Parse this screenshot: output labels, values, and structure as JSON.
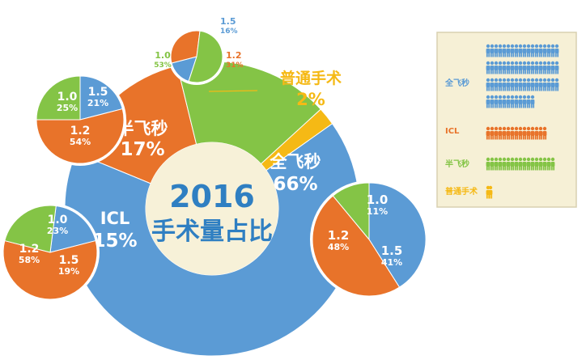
{
  "colors": {
    "blue": "#5B9BD5",
    "orange": "#E8732A",
    "green": "#84C446",
    "yellow": "#F5B915",
    "center": "#F7F1D8",
    "center_text": "#2F7FC2",
    "panel_bg": "#F6F0D6",
    "panel_border": "#D8D0B0"
  },
  "chart_data": [
    {
      "type": "pie",
      "title": "2016",
      "subtitle": "手术量占比",
      "donut": true,
      "slices": [
        {
          "label": "全飞秒",
          "value": 66,
          "value_label": "66%",
          "color": "blue"
        },
        {
          "label": "ICL",
          "value": 15,
          "value_label": "15%",
          "color": "orange"
        },
        {
          "label": "半飞秒",
          "value": 17,
          "value_label": "17%",
          "color": "green"
        },
        {
          "label": "普通手术",
          "value": 2,
          "value_label": "2%",
          "color": "yellow"
        }
      ]
    },
    {
      "type": "pie",
      "category": "普通手术",
      "slices": [
        {
          "label": "1.5",
          "value": 16,
          "value_label": "16%",
          "color": "blue"
        },
        {
          "label": "1.2",
          "value": 31,
          "value_label": "31%",
          "color": "orange"
        },
        {
          "label": "1.0",
          "value": 53,
          "value_label": "53%",
          "color": "green"
        }
      ]
    },
    {
      "type": "pie",
      "category": "半飞秒",
      "slices": [
        {
          "label": "1.5",
          "value": 21,
          "value_label": "21%",
          "color": "blue"
        },
        {
          "label": "1.2",
          "value": 54,
          "value_label": "54%",
          "color": "orange"
        },
        {
          "label": "1.0",
          "value": 25,
          "value_label": "25%",
          "color": "green"
        }
      ]
    },
    {
      "type": "pie",
      "category": "ICL",
      "slices": [
        {
          "label": "1.5",
          "value": 19,
          "value_label": "19%",
          "color": "blue"
        },
        {
          "label": "1.2",
          "value": 58,
          "value_label": "58%",
          "color": "orange"
        },
        {
          "label": "1.0",
          "value": 23,
          "value_label": "23%",
          "color": "green"
        }
      ]
    },
    {
      "type": "pie",
      "category": "全飞秒",
      "slices": [
        {
          "label": "1.5",
          "value": 41,
          "value_label": "41%",
          "color": "blue"
        },
        {
          "label": "1.2",
          "value": 48,
          "value_label": "48%",
          "color": "orange"
        },
        {
          "label": "1.0",
          "value": 11,
          "value_label": "11%",
          "color": "green"
        }
      ]
    }
  ],
  "legend": {
    "items": [
      {
        "label": "全飞秒",
        "count": 66,
        "color": "blue"
      },
      {
        "label": "ICL",
        "count": 15,
        "color": "orange"
      },
      {
        "label": "半飞秒",
        "count": 17,
        "color": "green"
      },
      {
        "label": "普通手术",
        "count": 2,
        "color": "yellow"
      }
    ]
  }
}
